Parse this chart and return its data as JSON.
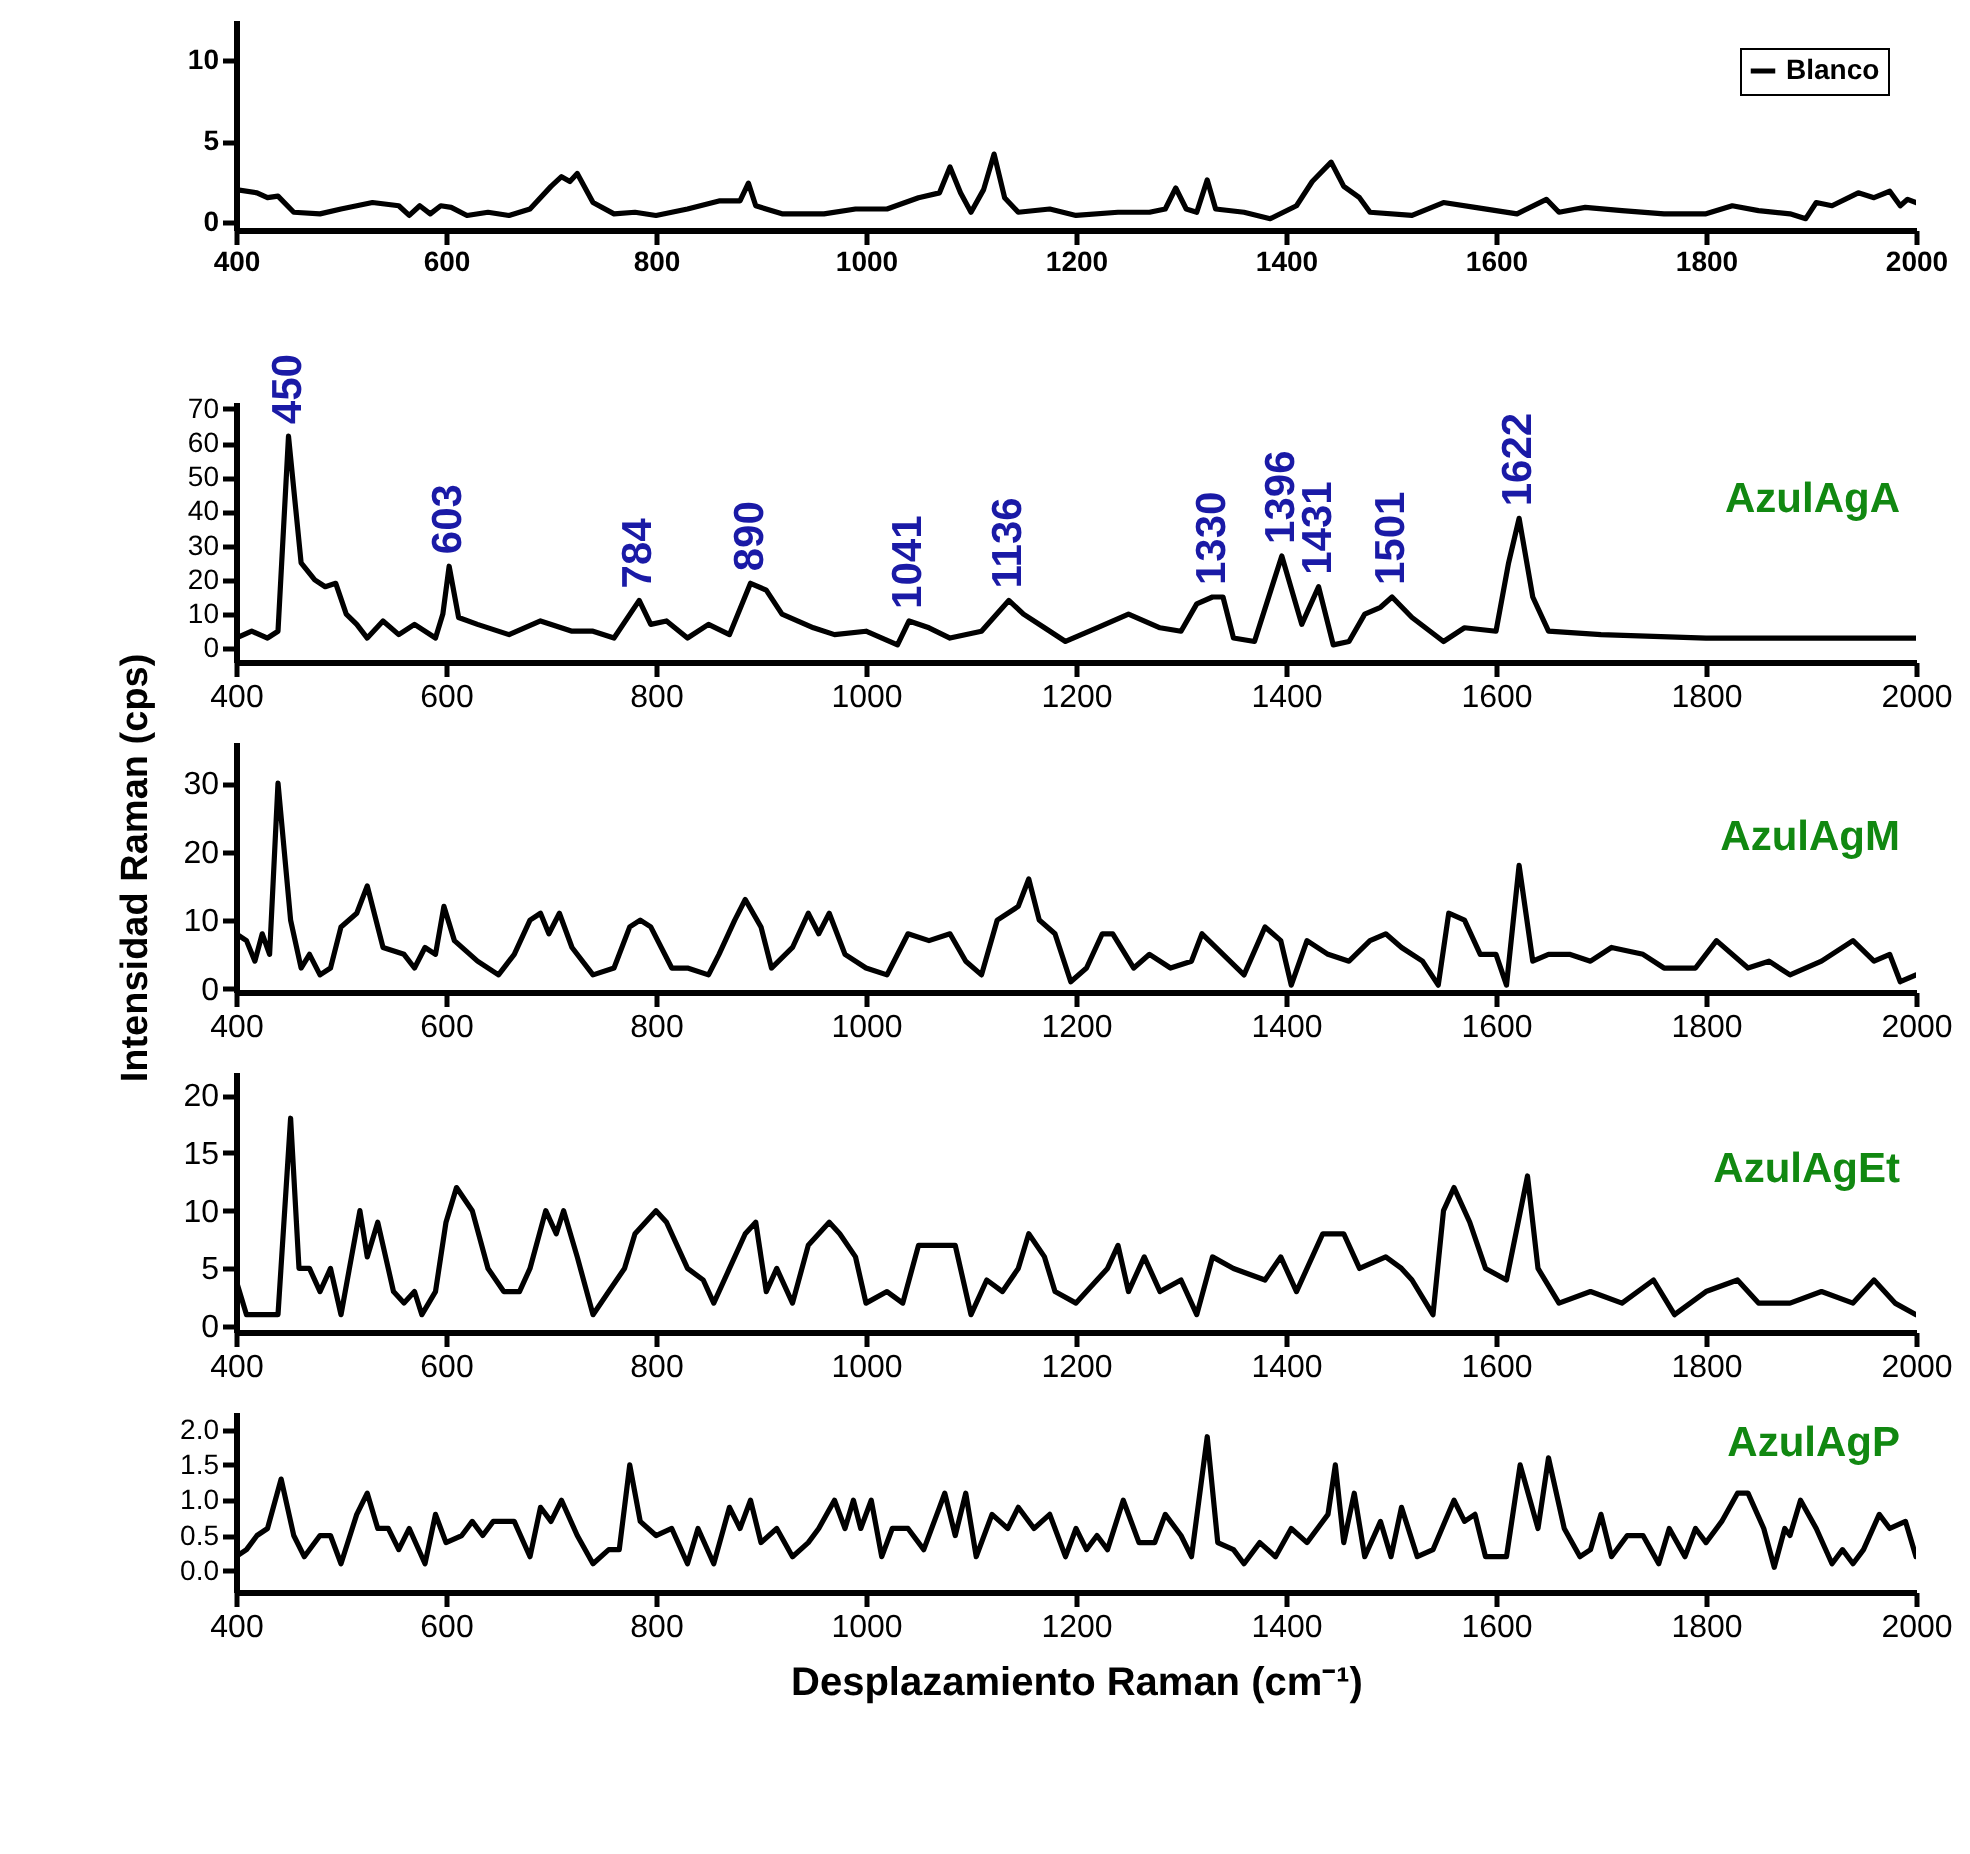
{
  "chart_data": [
    {
      "type": "line",
      "legend": "top right",
      "x": [
        400,
        420,
        430,
        440,
        455,
        480,
        500,
        530,
        555,
        565,
        575,
        585,
        595,
        605,
        620,
        640,
        660,
        680,
        700,
        710,
        718,
        725,
        740,
        760,
        780,
        800,
        830,
        860,
        880,
        888,
        895,
        920,
        960,
        990,
        1020,
        1050,
        1070,
        1080,
        1090,
        1100,
        1112,
        1122,
        1132,
        1145,
        1175,
        1200,
        1240,
        1270,
        1285,
        1295,
        1305,
        1315,
        1325,
        1333,
        1360,
        1385,
        1410,
        1425,
        1443,
        1455,
        1470,
        1480,
        1520,
        1550,
        1580,
        1620,
        1648,
        1660,
        1685,
        1720,
        1760,
        1800,
        1825,
        1850,
        1880,
        1895,
        1905,
        1920,
        1945,
        1960,
        1975,
        1985,
        1992,
        2000
      ],
      "series": [
        {
          "name": "Blanco",
          "color": "#000000",
          "values": [
            2.0,
            1.8,
            1.5,
            1.6,
            0.6,
            0.5,
            0.8,
            1.2,
            1.0,
            0.4,
            1.0,
            0.5,
            1.0,
            0.9,
            0.4,
            0.6,
            0.4,
            0.8,
            2.2,
            2.8,
            2.5,
            3.0,
            1.2,
            0.5,
            0.6,
            0.4,
            0.8,
            1.3,
            1.3,
            2.4,
            1.0,
            0.5,
            0.5,
            0.8,
            0.8,
            1.5,
            1.8,
            3.4,
            1.8,
            0.6,
            2.0,
            4.2,
            1.5,
            0.6,
            0.8,
            0.4,
            0.6,
            0.6,
            0.8,
            2.1,
            0.8,
            0.6,
            2.6,
            0.8,
            0.6,
            0.2,
            1.0,
            2.5,
            3.7,
            2.2,
            1.5,
            0.6,
            0.4,
            1.2,
            0.9,
            0.5,
            1.4,
            0.6,
            0.9,
            0.7,
            0.5,
            0.5,
            1.0,
            0.7,
            0.5,
            0.2,
            1.2,
            1.0,
            1.8,
            1.5,
            1.9,
            1.0,
            1.4,
            1.2
          ]
        }
      ],
      "xlim": [
        400,
        2000
      ],
      "xticks": [
        400,
        600,
        800,
        1000,
        1200,
        1400,
        1600,
        1800,
        2000
      ],
      "ylim": [
        -0.5,
        12.5
      ],
      "yticks": [
        0,
        5,
        10
      ]
    },
    {
      "type": "line",
      "x": [
        400,
        415,
        430,
        440,
        450,
        462,
        475,
        485,
        495,
        505,
        515,
        525,
        540,
        555,
        570,
        590,
        597,
        603,
        612,
        630,
        660,
        690,
        720,
        740,
        760,
        784,
        795,
        810,
        830,
        850,
        870,
        890,
        905,
        920,
        950,
        970,
        1000,
        1030,
        1041,
        1060,
        1080,
        1110,
        1136,
        1150,
        1170,
        1190,
        1220,
        1250,
        1280,
        1300,
        1315,
        1330,
        1340,
        1350,
        1370,
        1396,
        1415,
        1431,
        1445,
        1460,
        1475,
        1490,
        1501,
        1520,
        1550,
        1570,
        1600,
        1612,
        1622,
        1635,
        1650,
        1700,
        1800,
        1900,
        1960,
        2000
      ],
      "series": [
        {
          "name": "AzulAgA",
          "color": "#000000",
          "values": [
            3,
            5,
            3,
            5,
            62,
            25,
            20,
            18,
            19,
            10,
            7,
            3,
            8,
            4,
            7,
            3,
            10,
            24,
            9,
            7,
            4,
            8,
            5,
            5,
            3,
            14,
            7,
            8,
            3,
            7,
            4,
            19,
            17,
            10,
            6,
            4,
            5,
            1,
            8,
            6,
            3,
            5,
            14,
            10,
            6,
            2,
            6,
            10,
            6,
            5,
            13,
            15,
            15,
            3,
            2,
            27,
            7,
            18,
            1,
            2,
            10,
            12,
            15,
            9,
            2,
            6,
            5,
            25,
            38,
            15,
            5,
            4,
            3,
            3,
            3,
            3
          ]
        }
      ],
      "annotations": [
        {
          "text": "450",
          "x": 450,
          "y": 62
        },
        {
          "text": "603",
          "x": 603,
          "y": 24
        },
        {
          "text": "784",
          "x": 784,
          "y": 14
        },
        {
          "text": "890",
          "x": 890,
          "y": 19
        },
        {
          "text": "1041",
          "x": 1041,
          "y": 8
        },
        {
          "text": "1136",
          "x": 1136,
          "y": 14
        },
        {
          "text": "1330",
          "x": 1330,
          "y": 15
        },
        {
          "text": "1396",
          "x": 1396,
          "y": 27
        },
        {
          "text": "1431",
          "x": 1431,
          "y": 18
        },
        {
          "text": "1501",
          "x": 1501,
          "y": 15
        },
        {
          "text": "1622",
          "x": 1622,
          "y": 38
        }
      ],
      "xlim": [
        400,
        2000
      ],
      "xticks": [
        400,
        600,
        800,
        1000,
        1200,
        1400,
        1600,
        1800,
        2000
      ],
      "ylim": [
        -4,
        72
      ],
      "yticks": [
        0,
        10,
        20,
        30,
        40,
        50,
        60,
        70
      ]
    },
    {
      "type": "line",
      "ylabel": "Intensidad Raman (cps)",
      "x": [
        400,
        410,
        418,
        425,
        432,
        440,
        452,
        462,
        470,
        480,
        490,
        500,
        515,
        525,
        540,
        560,
        570,
        580,
        590,
        598,
        608,
        630,
        650,
        665,
        680,
        690,
        698,
        708,
        720,
        740,
        760,
        775,
        785,
        795,
        815,
        830,
        850,
        860,
        875,
        885,
        900,
        910,
        930,
        945,
        955,
        965,
        980,
        1000,
        1020,
        1040,
        1060,
        1080,
        1095,
        1110,
        1125,
        1145,
        1155,
        1165,
        1180,
        1195,
        1210,
        1225,
        1235,
        1255,
        1270,
        1290,
        1310,
        1320,
        1340,
        1360,
        1380,
        1395,
        1405,
        1420,
        1440,
        1460,
        1480,
        1495,
        1510,
        1530,
        1545,
        1555,
        1570,
        1585,
        1600,
        1610,
        1622,
        1635,
        1650,
        1670,
        1690,
        1710,
        1740,
        1760,
        1790,
        1810,
        1840,
        1860,
        1880,
        1910,
        1940,
        1960,
        1975,
        1985,
        2000
      ],
      "series": [
        {
          "name": "AzulAgM",
          "color": "#000000",
          "values": [
            8,
            7,
            4,
            8,
            5,
            30,
            10,
            3,
            5,
            2,
            3,
            9,
            11,
            15,
            6,
            5,
            3,
            6,
            5,
            12,
            7,
            4,
            2,
            5,
            10,
            11,
            8,
            11,
            6,
            2,
            3,
            9,
            10,
            9,
            3,
            3,
            2,
            5,
            10,
            13,
            9,
            3,
            6,
            11,
            8,
            11,
            5,
            3,
            2,
            8,
            7,
            8,
            4,
            2,
            10,
            12,
            16,
            10,
            8,
            1,
            3,
            8,
            8,
            3,
            5,
            3,
            4,
            8,
            5,
            2,
            9,
            7,
            0.5,
            7,
            5,
            4,
            7,
            8,
            6,
            4,
            0.5,
            11,
            10,
            5,
            5,
            0.5,
            18,
            4,
            5,
            5,
            4,
            6,
            5,
            3,
            3,
            7,
            3,
            4,
            2,
            4,
            7,
            4,
            5,
            1,
            2
          ]
        }
      ],
      "xlim": [
        400,
        2000
      ],
      "xticks": [
        400,
        600,
        800,
        1000,
        1200,
        1400,
        1600,
        1800,
        2000
      ],
      "ylim": [
        -0.5,
        36
      ],
      "yticks": [
        0,
        10,
        20,
        30
      ]
    },
    {
      "type": "line",
      "x": [
        400,
        410,
        425,
        440,
        452,
        460,
        470,
        480,
        490,
        500,
        510,
        518,
        525,
        535,
        550,
        560,
        570,
        577,
        590,
        600,
        610,
        625,
        640,
        655,
        670,
        680,
        695,
        705,
        712,
        725,
        740,
        755,
        770,
        780,
        790,
        800,
        810,
        830,
        845,
        855,
        870,
        885,
        895,
        905,
        915,
        930,
        945,
        965,
        975,
        990,
        1000,
        1020,
        1035,
        1050,
        1065,
        1085,
        1100,
        1115,
        1130,
        1145,
        1155,
        1170,
        1180,
        1200,
        1210,
        1230,
        1240,
        1250,
        1265,
        1280,
        1300,
        1315,
        1330,
        1350,
        1380,
        1395,
        1410,
        1435,
        1455,
        1470,
        1495,
        1510,
        1520,
        1540,
        1550,
        1560,
        1575,
        1590,
        1610,
        1630,
        1640,
        1660,
        1690,
        1720,
        1750,
        1770,
        1800,
        1830,
        1850,
        1880,
        1910,
        1940,
        1960,
        1980,
        2000
      ],
      "series": [
        {
          "name": "AzulAgEt",
          "color": "#000000",
          "values": [
            4,
            1,
            1,
            1,
            18,
            5,
            5,
            3,
            5,
            1,
            6,
            10,
            6,
            9,
            3,
            2,
            3,
            1,
            3,
            9,
            12,
            10,
            5,
            3,
            3,
            5,
            10,
            8,
            10,
            6,
            1,
            3,
            5,
            8,
            9,
            10,
            9,
            5,
            4,
            2,
            5,
            8,
            9,
            3,
            5,
            2,
            7,
            9,
            8,
            6,
            2,
            3,
            2,
            7,
            7,
            7,
            1,
            4,
            3,
            5,
            8,
            6,
            3,
            2,
            3,
            5,
            7,
            3,
            6,
            3,
            4,
            1,
            6,
            5,
            4,
            6,
            3,
            8,
            8,
            5,
            6,
            5,
            4,
            1,
            10,
            12,
            9,
            5,
            4,
            13,
            5,
            2,
            3,
            2,
            4,
            1,
            3,
            4,
            2,
            2,
            3,
            2,
            4,
            2,
            1
          ]
        }
      ],
      "xlim": [
        400,
        2000
      ],
      "xticks": [
        400,
        600,
        800,
        1000,
        1200,
        1400,
        1600,
        1800,
        2000
      ],
      "ylim": [
        -0.5,
        22
      ],
      "yticks": [
        0,
        5,
        10,
        15,
        20
      ]
    },
    {
      "type": "line",
      "xlabel": "Desplazamiento Raman (cm⁻¹)",
      "x": [
        400,
        410,
        420,
        430,
        443,
        455,
        465,
        480,
        490,
        500,
        515,
        525,
        535,
        545,
        555,
        565,
        580,
        590,
        600,
        615,
        625,
        635,
        645,
        665,
        680,
        690,
        700,
        710,
        725,
        740,
        755,
        765,
        775,
        785,
        800,
        815,
        830,
        840,
        855,
        870,
        880,
        890,
        900,
        915,
        930,
        945,
        955,
        970,
        980,
        988,
        995,
        1005,
        1015,
        1025,
        1040,
        1055,
        1070,
        1075,
        1085,
        1095,
        1105,
        1120,
        1135,
        1145,
        1160,
        1175,
        1190,
        1200,
        1210,
        1220,
        1230,
        1245,
        1260,
        1275,
        1285,
        1300,
        1310,
        1325,
        1335,
        1350,
        1360,
        1375,
        1390,
        1405,
        1420,
        1440,
        1447,
        1455,
        1465,
        1475,
        1490,
        1500,
        1510,
        1525,
        1540,
        1560,
        1570,
        1580,
        1590,
        1610,
        1623,
        1640,
        1650,
        1665,
        1680,
        1690,
        1700,
        1710,
        1725,
        1740,
        1755,
        1765,
        1780,
        1790,
        1800,
        1815,
        1830,
        1840,
        1855,
        1865,
        1875,
        1880,
        1890,
        1905,
        1920,
        1930,
        1940,
        1950,
        1965,
        1975,
        1990,
        2000
      ],
      "series": [
        {
          "name": "AzulAgP",
          "color": "#000000",
          "values": [
            0.2,
            0.3,
            0.5,
            0.6,
            1.3,
            0.5,
            0.2,
            0.5,
            0.5,
            0.1,
            0.8,
            1.1,
            0.6,
            0.6,
            0.3,
            0.6,
            0.1,
            0.8,
            0.4,
            0.5,
            0.7,
            0.5,
            0.7,
            0.7,
            0.2,
            0.9,
            0.7,
            1.0,
            0.5,
            0.1,
            0.3,
            0.3,
            1.5,
            0.7,
            0.5,
            0.6,
            0.1,
            0.6,
            0.1,
            0.9,
            0.6,
            1.0,
            0.4,
            0.6,
            0.2,
            0.4,
            0.6,
            1.0,
            0.6,
            1.0,
            0.6,
            1.0,
            0.2,
            0.6,
            0.6,
            0.3,
            0.9,
            1.1,
            0.5,
            1.1,
            0.2,
            0.8,
            0.6,
            0.9,
            0.6,
            0.8,
            0.2,
            0.6,
            0.3,
            0.5,
            0.3,
            1.0,
            0.4,
            0.4,
            0.8,
            0.5,
            0.2,
            1.9,
            0.4,
            0.3,
            0.1,
            0.4,
            0.2,
            0.6,
            0.4,
            0.8,
            1.5,
            0.4,
            1.1,
            0.2,
            0.7,
            0.2,
            0.9,
            0.2,
            0.3,
            1.0,
            0.7,
            0.8,
            0.2,
            0.2,
            1.5,
            0.6,
            1.6,
            0.6,
            0.2,
            0.3,
            0.8,
            0.2,
            0.5,
            0.5,
            0.1,
            0.6,
            0.2,
            0.6,
            0.4,
            0.7,
            1.1,
            1.1,
            0.6,
            0.05,
            0.6,
            0.5,
            1.0,
            0.6,
            0.1,
            0.3,
            0.1,
            0.3,
            0.8,
            0.6,
            0.7,
            0.2
          ]
        }
      ],
      "xlim": [
        400,
        2000
      ],
      "xticks": [
        400,
        600,
        800,
        1000,
        1200,
        1400,
        1600,
        1800,
        2000
      ],
      "ylim": [
        -0.3,
        2.25
      ],
      "yticks": [
        {
          "value": 0,
          "label": "0.0"
        },
        {
          "value": 0.5,
          "label": "0.5"
        },
        {
          "value": 1,
          "label": "1.0"
        },
        {
          "value": 1.5,
          "label": "1.5"
        },
        {
          "value": 2,
          "label": "2.0"
        }
      ]
    }
  ]
}
